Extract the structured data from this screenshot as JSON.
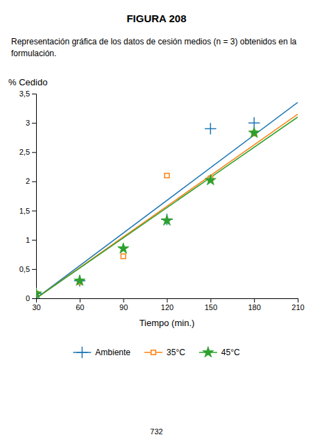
{
  "chart_data": {
    "type": "scatter",
    "title": "FIGURA 208",
    "subtitle": [
      "Representación gráfica de los datos de cesión medios (n = 3) obtenidos en la",
      "formulación."
    ],
    "x_label": "Tiempo (min.)",
    "y_label": "% Cedido",
    "xlim": [
      30,
      210
    ],
    "ylim": [
      0,
      3.5
    ],
    "xticks": [
      30,
      60,
      90,
      120,
      150,
      180,
      210
    ],
    "yticks": [
      0,
      {
        "value": 0.5,
        "label": "0,5"
      },
      1,
      {
        "value": 1.5,
        "label": "1,5"
      },
      2,
      {
        "value": 2.5,
        "label": "2,5"
      },
      3,
      {
        "value": 3.5,
        "label": "3,5"
      }
    ],
    "grid": false,
    "legend": "bottom",
    "page_number": "732",
    "series": [
      {
        "name": "Ambiente",
        "marker": "plus",
        "x": [
          30,
          60,
          120,
          150,
          180
        ],
        "values": [
          0.08,
          0.3,
          1.35,
          2.9,
          3.0
        ],
        "trend_x": [
          30,
          210
        ],
        "trend_values": [
          0.0,
          3.35
        ]
      },
      {
        "name": "35°C",
        "marker": "square",
        "x": [
          30,
          60,
          90,
          120,
          150,
          180
        ],
        "values": [
          0.08,
          0.28,
          0.72,
          2.1,
          2.05,
          2.82
        ],
        "trend_x": [
          30,
          210
        ],
        "trend_values": [
          0.0,
          3.15
        ]
      },
      {
        "name": "45°C",
        "marker": "star",
        "x": [
          30,
          60,
          90,
          120,
          150,
          180
        ],
        "values": [
          0.08,
          0.3,
          0.85,
          1.33,
          2.02,
          2.83
        ],
        "trend_x": [
          30,
          210
        ],
        "trend_values": [
          0.0,
          3.1
        ]
      }
    ]
  }
}
